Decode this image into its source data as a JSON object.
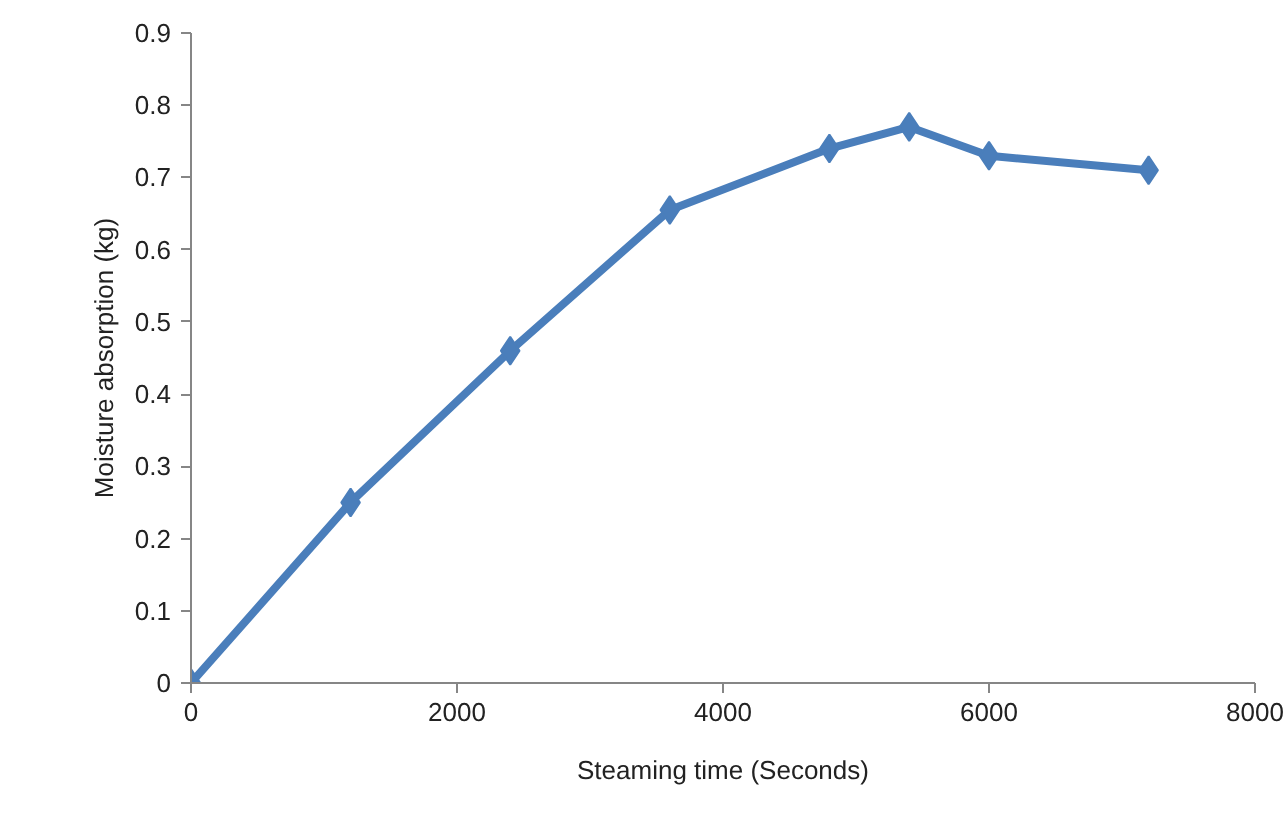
{
  "chart_data": {
    "type": "line",
    "xlabel": "Steaming time (Seconds)",
    "ylabel": "Moisture absorption (kg)",
    "x": [
      0,
      1200,
      2400,
      3600,
      4800,
      5400,
      6000,
      7200
    ],
    "series": [
      {
        "color": "#4a7ebb",
        "values": [
          0,
          0.25,
          0.46,
          0.655,
          0.74,
          0.77,
          0.73,
          0.71
        ]
      }
    ],
    "xlim": [
      0,
      8000
    ],
    "xticks": [
      0,
      2000,
      4000,
      6000,
      8000
    ],
    "ylim": [
      0,
      0.9
    ],
    "yticks": [
      0,
      0.1,
      0.2,
      0.3,
      0.4,
      0.5,
      0.6,
      0.7,
      0.8,
      0.9
    ],
    "marker": "diamond",
    "line_style": "solid"
  }
}
